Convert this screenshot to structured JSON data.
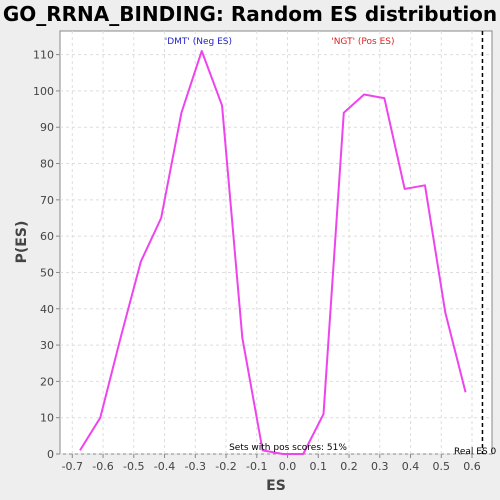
{
  "chart_data": {
    "type": "line",
    "title": "GO_RRNA_BINDING: Random ES distribution",
    "xlabel": "ES",
    "ylabel": "P(ES)",
    "xlim": [
      -0.74,
      0.665
    ],
    "ylim": [
      0,
      116.5
    ],
    "xticks": [
      -0.7,
      -0.6,
      -0.5,
      -0.4,
      -0.3,
      -0.2,
      -0.1,
      0.0,
      0.1,
      0.2,
      0.3,
      0.4,
      0.5,
      0.6
    ],
    "xtick_labels": [
      "-0.7",
      "-0.6",
      "-0.5",
      "-0.4",
      "-0.3",
      "-0.2",
      "-0.1",
      "0.0",
      "0.1",
      "0.2",
      "0.3",
      "0.4",
      "0.5",
      "0.6"
    ],
    "yticks": [
      0,
      10,
      20,
      30,
      40,
      50,
      60,
      70,
      80,
      90,
      100,
      110
    ],
    "ytick_labels": [
      "0",
      "10",
      "20",
      "30",
      "40",
      "50",
      "60",
      "70",
      "80",
      "90",
      "100",
      "110"
    ],
    "grid": true,
    "series": [
      {
        "color": "#ee44ee",
        "x": [
          -0.675,
          -0.609,
          -0.543,
          -0.477,
          -0.411,
          -0.345,
          -0.279,
          -0.213,
          -0.147,
          -0.081,
          -0.015,
          0.051,
          0.117,
          0.183,
          0.249,
          0.315,
          0.381,
          0.447,
          0.513,
          0.579
        ],
        "y": [
          1,
          10,
          32,
          53,
          65,
          94,
          111,
          96,
          32,
          1,
          0,
          0,
          11,
          94,
          99,
          98,
          73,
          74,
          39,
          17
        ]
      }
    ],
    "real_es": 0.634,
    "annotations": {
      "neg_label": "'DMT' (Neg ES)",
      "pos_label": "'NGT' (Pos ES)",
      "sets_text": "Sets with pos scores: 51%",
      "real_es_label": "Real ES 0"
    },
    "colors": {
      "neg": "#2222cc",
      "pos": "#dd2222",
      "line": "#ee44ee"
    }
  }
}
